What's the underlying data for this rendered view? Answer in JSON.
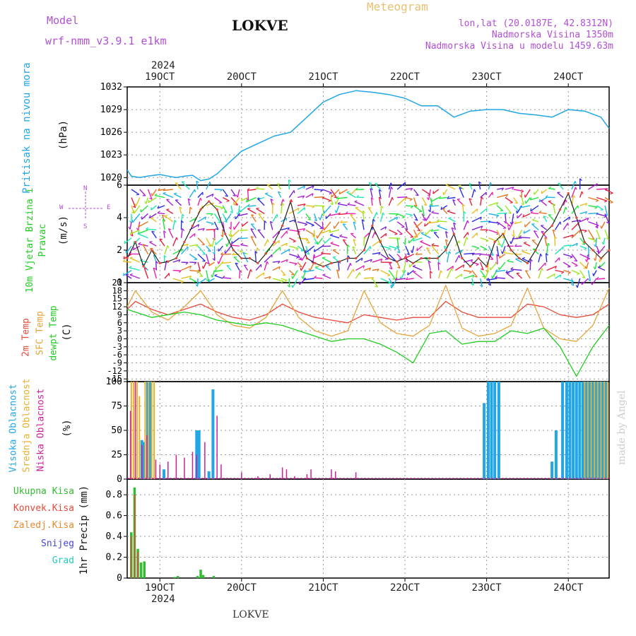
{
  "header": {
    "model_label": "Model",
    "model_name": "wrf-nmm_v3.9.1 e1km",
    "station": "LOKVE",
    "meteogram": "Meteogram",
    "lonlat": "lon,lat (20.0187E, 42.8312N)",
    "altitude": "Nadmorska Visina 1350m",
    "model_altitude": "Nadmorska Visina u modelu 1459.63m",
    "top_year": "2024",
    "bottom_year": "2024",
    "footer_station": "LOKVE",
    "watermark": "made by Angel"
  },
  "colors": {
    "pressure": "#22a6e6",
    "temp2m": "#e84a3a",
    "sfc_temp": "#e6a43c",
    "dewpt": "#22cc22",
    "high_cloud": "#22a6e6",
    "mid_cloud": "#e6b030",
    "low_cloud": "#cc2299",
    "total_precip": "#33bb33",
    "conv_precip": "#e84a3a",
    "frozen": "#e88a30",
    "snow": "#4444dd",
    "grad": "#22ccbb",
    "label_purple": "#b24fd6",
    "label_orange": "#e8c070",
    "wind_speed_line": "#222222"
  },
  "chart_data": [
    {
      "type": "line",
      "panel": "pressure",
      "title": "",
      "ylabel_name": "Pritisak na nivou mora",
      "ylabel_unit": "(hPa)",
      "ylim": [
        1019,
        1032
      ],
      "yticks": [
        1020,
        1023,
        1026,
        1029,
        1032
      ],
      "x_unit": "day of October 2024",
      "xlim": [
        18.6,
        24.5
      ],
      "xtick_values": [
        19,
        20,
        21,
        22,
        23,
        24
      ],
      "xtick_labels": [
        "19OCT",
        "20OCT",
        "21OCT",
        "22OCT",
        "23OCT",
        "24OCT"
      ],
      "grid": true,
      "series": [
        {
          "name": "Pritisak na nivou mora",
          "x": [
            18.6,
            18.65,
            18.75,
            18.85,
            19.0,
            19.1,
            19.2,
            19.3,
            19.4,
            19.5,
            19.6,
            19.7,
            19.8,
            20.0,
            20.2,
            20.4,
            20.6,
            20.8,
            21.0,
            21.2,
            21.4,
            21.6,
            21.8,
            22.0,
            22.2,
            22.4,
            22.6,
            22.8,
            23.0,
            23.2,
            23.4,
            23.6,
            23.8,
            24.0,
            24.2,
            24.4,
            24.5
          ],
          "y": [
            1021.0,
            1020.2,
            1020.0,
            1020.2,
            1020.4,
            1020.2,
            1020.0,
            1020.2,
            1020.3,
            1019.6,
            1019.8,
            1020.5,
            1021.5,
            1023.5,
            1024.5,
            1025.5,
            1026.0,
            1028.0,
            1030.0,
            1031.0,
            1031.5,
            1031.3,
            1031.0,
            1030.5,
            1029.5,
            1029.5,
            1028.0,
            1028.8,
            1029.0,
            1029.0,
            1028.5,
            1028.3,
            1028.0,
            1029.0,
            1028.8,
            1028.0,
            1026.5
          ]
        }
      ]
    },
    {
      "type": "line",
      "panel": "wind",
      "title": "",
      "ylabel_name": "10m Vjetar Brzina i Pravac",
      "ylabel_unit": "(m/s)",
      "compass": [
        "N",
        "W",
        "E",
        "S"
      ],
      "ylim": [
        0,
        6
      ],
      "yticks": [
        0,
        2,
        4,
        6
      ],
      "x_unit": "day of October 2024",
      "xlim": [
        18.6,
        24.5
      ],
      "grid": true,
      "series": [
        {
          "name": "10m Vjetar Brzina",
          "x": [
            18.6,
            18.7,
            18.8,
            18.9,
            19.0,
            19.1,
            19.2,
            19.3,
            19.4,
            19.5,
            19.6,
            19.7,
            19.8,
            19.9,
            20.0,
            20.1,
            20.2,
            20.3,
            20.4,
            20.5,
            20.6,
            20.7,
            20.8,
            20.9,
            21.0,
            21.1,
            21.2,
            21.3,
            21.4,
            21.5,
            21.6,
            21.7,
            21.8,
            21.9,
            22.0,
            22.1,
            22.2,
            22.3,
            22.4,
            22.5,
            22.6,
            22.7,
            22.8,
            22.9,
            23.0,
            23.1,
            23.2,
            23.3,
            23.4,
            23.5,
            23.6,
            23.7,
            23.8,
            23.9,
            24.0,
            24.1,
            24.2,
            24.3,
            24.4,
            24.5
          ],
          "y": [
            1.5,
            2.5,
            1.0,
            2.0,
            1.2,
            1.3,
            1.5,
            2.5,
            3.5,
            4.5,
            5.0,
            4.5,
            3.0,
            2.0,
            1.5,
            1.5,
            1.2,
            1.8,
            2.5,
            3.5,
            5.0,
            3.0,
            1.5,
            1.2,
            1.0,
            1.2,
            1.3,
            1.5,
            1.5,
            2.0,
            3.5,
            2.5,
            1.5,
            1.3,
            1.5,
            1.2,
            1.5,
            1.5,
            1.5,
            2.0,
            3.0,
            1.5,
            1.0,
            1.5,
            1.0,
            2.5,
            3.0,
            2.0,
            1.5,
            1.2,
            2.0,
            3.0,
            3.5,
            4.5,
            5.5,
            4.0,
            2.5,
            2.0,
            1.5,
            2.0
          ]
        }
      ]
    },
    {
      "type": "line",
      "panel": "temperature",
      "title": "",
      "ylabel_names": [
        "2m Temp",
        "SFC Temp",
        "dewpt Temp"
      ],
      "ylabel_unit": "(C)",
      "ylim": [
        -16,
        21
      ],
      "yticks": [
        21,
        18,
        15,
        12,
        9,
        6,
        3,
        0,
        -3,
        -6,
        -9,
        -12,
        -15
      ],
      "x_unit": "day of October 2024",
      "xlim": [
        18.6,
        24.5
      ],
      "grid": true,
      "series": [
        {
          "name": "2m Temp",
          "x": [
            18.6,
            18.7,
            18.9,
            19.1,
            19.3,
            19.5,
            19.7,
            19.9,
            20.1,
            20.3,
            20.5,
            20.7,
            20.9,
            21.1,
            21.3,
            21.5,
            21.7,
            21.9,
            22.1,
            22.3,
            22.5,
            22.7,
            22.9,
            23.1,
            23.3,
            23.5,
            23.7,
            23.9,
            24.1,
            24.3,
            24.5
          ],
          "y": [
            11,
            14,
            11,
            9,
            11,
            13,
            10,
            8,
            7,
            9,
            13,
            10,
            8,
            7,
            6,
            9,
            8,
            7,
            8,
            8,
            14,
            10,
            8,
            8,
            8,
            13,
            12,
            9,
            8,
            9,
            13
          ]
        },
        {
          "name": "SFC Temp",
          "x": [
            18.6,
            18.7,
            18.9,
            19.1,
            19.3,
            19.5,
            19.7,
            19.9,
            20.1,
            20.3,
            20.5,
            20.7,
            20.9,
            21.1,
            21.3,
            21.5,
            21.7,
            21.9,
            22.1,
            22.3,
            22.5,
            22.7,
            22.9,
            23.1,
            23.3,
            23.5,
            23.7,
            23.9,
            24.1,
            24.3,
            24.5
          ],
          "y": [
            12,
            18,
            10,
            7,
            12,
            18,
            9,
            5,
            4,
            8,
            18,
            8,
            3,
            1,
            3,
            18,
            6,
            2,
            1,
            5,
            20,
            4,
            1,
            2,
            5,
            19,
            4,
            0,
            -1,
            5,
            19
          ]
        },
        {
          "name": "dewpt Temp",
          "x": [
            18.6,
            18.7,
            18.9,
            19.1,
            19.3,
            19.5,
            19.7,
            19.9,
            20.1,
            20.3,
            20.5,
            20.7,
            20.9,
            21.1,
            21.3,
            21.5,
            21.7,
            21.9,
            22.1,
            22.3,
            22.5,
            22.7,
            22.9,
            23.1,
            23.3,
            23.5,
            23.7,
            23.9,
            24.1,
            24.3,
            24.5
          ],
          "y": [
            11,
            10,
            8,
            9,
            10,
            9,
            7,
            6,
            5,
            6,
            5,
            3,
            1,
            -1,
            0,
            0,
            -2,
            -5,
            -9,
            2,
            3,
            -2,
            -1,
            -1,
            3,
            2,
            4,
            -3,
            -14,
            -3,
            5
          ]
        }
      ]
    },
    {
      "type": "bar",
      "panel": "clouds",
      "title": "",
      "ylabel_names": [
        "Visoka Oblacnost",
        "Srednja Oblacnost",
        "Niska Oblacnost"
      ],
      "ylabel_unit": "(%)",
      "ylim": [
        0,
        100
      ],
      "yticks": [
        0,
        25,
        50,
        75,
        100
      ],
      "x_unit": "day of October 2024",
      "xlim": [
        18.6,
        24.5
      ],
      "grid": true,
      "series": [
        {
          "name": "Visoka Oblacnost",
          "x": [
            18.78,
            18.8,
            18.85,
            18.88,
            19.05,
            19.45,
            19.48,
            19.6,
            19.65,
            22.97,
            23.02,
            23.06,
            23.1,
            23.15,
            23.8,
            23.85,
            23.93,
            23.98,
            24.02,
            24.06,
            24.1,
            24.14,
            24.18,
            24.22,
            24.26,
            24.3,
            24.34,
            24.38,
            24.42,
            24.46
          ],
          "y": [
            40,
            38,
            100,
            100,
            10,
            50,
            50,
            8,
            92,
            78,
            100,
            100,
            100,
            100,
            18,
            50,
            100,
            100,
            100,
            100,
            100,
            100,
            100,
            100,
            100,
            100,
            100,
            100,
            100,
            100
          ]
        },
        {
          "name": "Srednja Oblacnost",
          "x": [
            18.65,
            18.68,
            18.72,
            18.75,
            18.82,
            18.86,
            18.9,
            18.93,
            24.2,
            24.24,
            24.28,
            24.32,
            24.36,
            24.4,
            24.44,
            24.48
          ],
          "y": [
            100,
            100,
            100,
            85,
            100,
            100,
            100,
            100,
            100,
            100,
            100,
            100,
            100,
            100,
            100,
            100
          ]
        },
        {
          "name": "Niska Oblacnost",
          "x": [
            18.64,
            18.7,
            18.78,
            18.84,
            18.95,
            19.0,
            19.1,
            19.2,
            19.3,
            19.4,
            19.45,
            19.55,
            19.7,
            19.75,
            20.0,
            20.2,
            20.35,
            20.5,
            20.55,
            20.65,
            20.8,
            20.85,
            21.1,
            21.15,
            21.4
          ],
          "y": [
            70,
            100,
            35,
            45,
            20,
            15,
            18,
            25,
            22,
            28,
            25,
            38,
            65,
            15,
            7,
            3,
            5,
            12,
            10,
            3,
            5,
            10,
            10,
            8,
            7
          ]
        }
      ]
    },
    {
      "type": "bar",
      "panel": "precipitation",
      "title": "",
      "ylabel_names": [
        "Ukupna Kisa",
        "Konvek.Kisa",
        "Zaledj.Kisa",
        "Snijeg",
        "Grad"
      ],
      "ylabel_unit": "1hr Precip (mm)",
      "ylim": [
        0,
        0.95
      ],
      "yticks": [
        0,
        0.2,
        0.4,
        0.6,
        0.8
      ],
      "x_unit": "day of October 2024",
      "xlim": [
        18.6,
        24.5
      ],
      "xtick_values": [
        19,
        20,
        21,
        22,
        23,
        24
      ],
      "xtick_labels": [
        "19OCT",
        "20OCT",
        "21OCT",
        "22OCT",
        "23OCT",
        "24OCT"
      ],
      "grid": true,
      "series": [
        {
          "name": "Ukupna Kisa",
          "x": [
            18.65,
            18.69,
            18.73,
            18.77,
            18.81,
            19.18,
            19.22,
            19.46,
            19.5,
            19.53,
            19.66
          ],
          "y": [
            0.44,
            0.87,
            0.28,
            0.15,
            0.16,
            0.01,
            0.02,
            0.02,
            0.08,
            0.03,
            0.02
          ]
        },
        {
          "name": "Konvek.Kisa",
          "x": [
            18.65,
            18.69,
            18.73
          ],
          "y": [
            0.4,
            0.8,
            0.25
          ]
        }
      ]
    }
  ]
}
